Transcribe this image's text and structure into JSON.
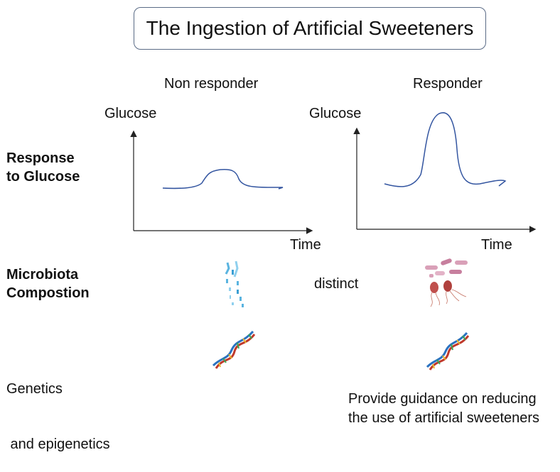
{
  "title": "The Ingestion of Artificial Sweeteners",
  "columns": {
    "left": "Non responder",
    "right": "Responder"
  },
  "axes": {
    "y_label": "Glucose",
    "x_label": "Time"
  },
  "rows": {
    "response": [
      "Response",
      "to Glucose"
    ],
    "microbiota": [
      "Microbiota",
      "Compostion"
    ],
    "genetics": [
      "Genetics",
      " and epigenetics"
    ]
  },
  "distinct_label": "distinct",
  "guidance": [
    "Provide guidance on reducing",
    "the use of artificial sweeteners"
  ],
  "colors": {
    "curve": "#3355a0",
    "border": "#5a6b86",
    "bacteria_pink": "#d9a0b8",
    "bacteria_red": "#c0504d",
    "microbe_blue": "#5ab4e0"
  }
}
